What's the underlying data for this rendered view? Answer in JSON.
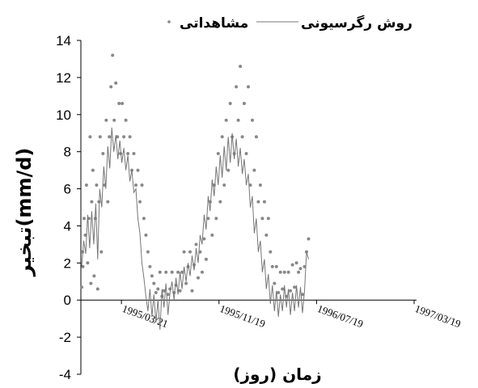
{
  "chart_data": {
    "type": "scatter",
    "title": "",
    "xlabel": "زمان (روز)",
    "ylabel": "تبخیر(mm/d)",
    "ylim": [
      -4,
      14
    ],
    "y_ticks": [
      -4,
      -2,
      0,
      2,
      4,
      6,
      8,
      10,
      12,
      14
    ],
    "x_start": "1994-12-10",
    "x_end": "1997-03-25",
    "x_ticks": [
      "1995-03-21",
      "1995-11-19",
      "1996-07-19",
      "1997-03-19"
    ],
    "x_tick_labels": [
      "1995/03/21",
      "1995/11/19",
      "1996/07/19",
      "1997/03/19"
    ],
    "grid": false,
    "legend": {
      "placement": "top",
      "entries": [
        "مشاهداتی",
        "روش رگرسیونی"
      ]
    },
    "series": [
      {
        "name": "مشاهداتی",
        "style": "markers",
        "color": "#888888",
        "points": [
          [
            "1994-12-12",
            0.7
          ],
          [
            "1994-12-14",
            2.6
          ],
          [
            "1994-12-15",
            1.8
          ],
          [
            "1994-12-18",
            4.4
          ],
          [
            "1994-12-21",
            3.5
          ],
          [
            "1994-12-24",
            6.2
          ],
          [
            "1994-12-27",
            2.0
          ],
          [
            "1994-12-30",
            4.4
          ],
          [
            "1995-01-02",
            8.8
          ],
          [
            "1995-01-04",
            0.9
          ],
          [
            "1995-01-06",
            5.3
          ],
          [
            "1995-01-09",
            7.0
          ],
          [
            "1995-01-12",
            1.3
          ],
          [
            "1995-01-15",
            4.4
          ],
          [
            "1995-01-18",
            6.2
          ],
          [
            "1995-01-21",
            0.6
          ],
          [
            "1995-01-24",
            5.3
          ],
          [
            "1995-01-27",
            8.8
          ],
          [
            "1995-01-30",
            2.6
          ],
          [
            "1995-02-03",
            7.9
          ],
          [
            "1995-02-07",
            6.2
          ],
          [
            "1995-02-11",
            9.7
          ],
          [
            "1995-02-15",
            5.3
          ],
          [
            "1995-02-19",
            8.8
          ],
          [
            "1995-02-23",
            11.5
          ],
          [
            "1995-02-27",
            13.2
          ],
          [
            "1995-03-03",
            9.7
          ],
          [
            "1995-03-07",
            11.7
          ],
          [
            "1995-03-11",
            8.8
          ],
          [
            "1995-03-15",
            10.6
          ],
          [
            "1995-03-19",
            7.9
          ],
          [
            "1995-03-23",
            10.6
          ],
          [
            "1995-03-27",
            8.8
          ],
          [
            "1995-04-01",
            9.7
          ],
          [
            "1995-04-06",
            7.9
          ],
          [
            "1995-04-11",
            8.8
          ],
          [
            "1995-04-16",
            7.0
          ],
          [
            "1995-04-21",
            7.9
          ],
          [
            "1995-04-26",
            6.2
          ],
          [
            "1995-05-01",
            7.0
          ],
          [
            "1995-05-06",
            5.3
          ],
          [
            "1995-05-11",
            6.2
          ],
          [
            "1995-05-16",
            4.4
          ],
          [
            "1995-05-21",
            3.5
          ],
          [
            "1995-05-26",
            2.6
          ],
          [
            "1995-05-31",
            1.8
          ],
          [
            "1995-06-05",
            1.3
          ],
          [
            "1995-06-10",
            0.9
          ],
          [
            "1995-06-15",
            0.4
          ],
          [
            "1995-06-20",
            0.6
          ],
          [
            "1995-06-25",
            1.5
          ],
          [
            "1995-06-30",
            0.2
          ],
          [
            "1995-07-05",
            0.5
          ],
          [
            "1995-07-10",
            1.5
          ],
          [
            "1995-07-15",
            0.3
          ],
          [
            "1995-07-20",
            0.6
          ],
          [
            "1995-07-25",
            1.5
          ],
          [
            "1995-07-30",
            0.4
          ],
          [
            "1995-08-04",
            0.8
          ],
          [
            "1995-08-09",
            1.5
          ],
          [
            "1995-08-14",
            0.5
          ],
          [
            "1995-08-19",
            1.5
          ],
          [
            "1995-08-24",
            2.6
          ],
          [
            "1995-08-29",
            0.9
          ],
          [
            "1995-09-03",
            1.8
          ],
          [
            "1995-09-08",
            2.6
          ],
          [
            "1995-09-13",
            0.5
          ],
          [
            "1995-09-18",
            1.9
          ],
          [
            "1995-09-23",
            3.0
          ],
          [
            "1995-09-28",
            1.2
          ],
          [
            "1995-10-03",
            2.6
          ],
          [
            "1995-10-08",
            1.5
          ],
          [
            "1995-10-13",
            3.3
          ],
          [
            "1995-10-18",
            2.2
          ],
          [
            "1995-10-23",
            4.4
          ],
          [
            "1995-10-28",
            5.3
          ],
          [
            "1995-11-02",
            3.5
          ],
          [
            "1995-11-07",
            6.2
          ],
          [
            "1995-11-12",
            4.4
          ],
          [
            "1995-11-17",
            7.9
          ],
          [
            "1995-11-22",
            5.3
          ],
          [
            "1995-11-27",
            8.8
          ],
          [
            "1995-12-02",
            6.2
          ],
          [
            "1995-12-07",
            9.7
          ],
          [
            "1995-12-12",
            7.0
          ],
          [
            "1995-12-17",
            10.6
          ],
          [
            "1995-12-22",
            8.8
          ],
          [
            "1995-12-27",
            7.9
          ],
          [
            "1996-01-01",
            11.5
          ],
          [
            "1996-01-06",
            9.7
          ],
          [
            "1996-01-11",
            12.6
          ],
          [
            "1996-01-16",
            8.8
          ],
          [
            "1996-01-21",
            10.6
          ],
          [
            "1996-01-26",
            7.9
          ],
          [
            "1996-01-31",
            11.5
          ],
          [
            "1996-02-05",
            6.2
          ],
          [
            "1996-02-10",
            9.7
          ],
          [
            "1996-02-15",
            7.0
          ],
          [
            "1996-02-20",
            8.8
          ],
          [
            "1996-02-25",
            5.3
          ],
          [
            "1996-03-01",
            6.2
          ],
          [
            "1996-03-06",
            4.4
          ],
          [
            "1996-03-11",
            5.3
          ],
          [
            "1996-03-16",
            3.5
          ],
          [
            "1996-03-21",
            4.4
          ],
          [
            "1996-03-26",
            2.6
          ],
          [
            "1996-03-31",
            1.8
          ],
          [
            "1996-04-05",
            0.9
          ],
          [
            "1996-04-10",
            1.8
          ],
          [
            "1996-04-15",
            0.4
          ],
          [
            "1996-04-20",
            1.5
          ],
          [
            "1996-04-25",
            0.6
          ],
          [
            "1996-04-30",
            1.5
          ],
          [
            "1996-05-05",
            0.2
          ],
          [
            "1996-05-10",
            1.5
          ],
          [
            "1996-05-15",
            0.5
          ],
          [
            "1996-05-20",
            1.9
          ],
          [
            "1996-05-25",
            0.7
          ],
          [
            "1996-05-30",
            2.0
          ],
          [
            "1996-06-04",
            1.5
          ],
          [
            "1996-06-09",
            1.7
          ],
          [
            "1996-06-14",
            0.3
          ],
          [
            "1996-06-19",
            1.8
          ],
          [
            "1996-06-24",
            2.6
          ],
          [
            "1996-06-29",
            3.3
          ]
        ]
      },
      {
        "name": "روش رگرسیونی",
        "style": "line",
        "color": "#777777",
        "points": [
          [
            "1994-12-12",
            1.8
          ],
          [
            "1994-12-17",
            3.2
          ],
          [
            "1994-12-22",
            2.5
          ],
          [
            "1994-12-27",
            4.6
          ],
          [
            "1995-01-01",
            2.8
          ],
          [
            "1995-01-06",
            4.8
          ],
          [
            "1995-01-11",
            3.0
          ],
          [
            "1995-01-16",
            5.2
          ],
          [
            "1995-01-21",
            2.2
          ],
          [
            "1995-01-26",
            6.0
          ],
          [
            "1995-01-31",
            5.0
          ],
          [
            "1995-02-05",
            7.2
          ],
          [
            "1995-02-10",
            6.0
          ],
          [
            "1995-02-15",
            8.3
          ],
          [
            "1995-02-20",
            7.1
          ],
          [
            "1995-02-25",
            9.3
          ],
          [
            "1995-03-02",
            8.0
          ],
          [
            "1995-03-07",
            8.9
          ],
          [
            "1995-03-12",
            7.6
          ],
          [
            "1995-03-17",
            8.6
          ],
          [
            "1995-03-22",
            7.4
          ],
          [
            "1995-03-27",
            8.2
          ],
          [
            "1995-04-01",
            7.0
          ],
          [
            "1995-04-06",
            7.8
          ],
          [
            "1995-04-11",
            6.4
          ],
          [
            "1995-04-16",
            7.0
          ],
          [
            "1995-04-21",
            5.8
          ],
          [
            "1995-04-26",
            6.0
          ],
          [
            "1995-05-01",
            4.4
          ],
          [
            "1995-05-06",
            3.6
          ],
          [
            "1995-05-11",
            2.0
          ],
          [
            "1995-05-16",
            1.2
          ],
          [
            "1995-05-21",
            0.2
          ],
          [
            "1995-05-26",
            -0.6
          ],
          [
            "1995-05-31",
            0.6
          ],
          [
            "1995-06-05",
            -0.9
          ],
          [
            "1995-06-10",
            0.3
          ],
          [
            "1995-06-15",
            -1.2
          ],
          [
            "1995-06-20",
            0.0
          ],
          [
            "1995-06-25",
            -1.6
          ],
          [
            "1995-06-30",
            0.6
          ],
          [
            "1995-07-05",
            -0.4
          ],
          [
            "1995-07-10",
            0.9
          ],
          [
            "1995-07-15",
            -0.8
          ],
          [
            "1995-07-20",
            0.4
          ],
          [
            "1995-07-25",
            1.0
          ],
          [
            "1995-07-30",
            0.0
          ],
          [
            "1995-08-04",
            1.2
          ],
          [
            "1995-08-09",
            0.3
          ],
          [
            "1995-08-14",
            1.5
          ],
          [
            "1995-08-19",
            0.6
          ],
          [
            "1995-08-24",
            1.8
          ],
          [
            "1995-08-29",
            1.0
          ],
          [
            "1995-09-03",
            2.0
          ],
          [
            "1995-09-08",
            1.3
          ],
          [
            "1995-09-13",
            2.4
          ],
          [
            "1995-09-18",
            1.6
          ],
          [
            "1995-09-23",
            2.8
          ],
          [
            "1995-09-28",
            2.0
          ],
          [
            "1995-10-03",
            3.5
          ],
          [
            "1995-10-08",
            3.0
          ],
          [
            "1995-10-13",
            4.6
          ],
          [
            "1995-10-18",
            3.8
          ],
          [
            "1995-10-23",
            5.6
          ],
          [
            "1995-10-28",
            4.8
          ],
          [
            "1995-11-02",
            6.5
          ],
          [
            "1995-11-07",
            5.6
          ],
          [
            "1995-11-12",
            7.2
          ],
          [
            "1995-11-17",
            6.2
          ],
          [
            "1995-11-22",
            7.8
          ],
          [
            "1995-11-27",
            6.6
          ],
          [
            "1995-12-02",
            8.3
          ],
          [
            "1995-12-07",
            7.0
          ],
          [
            "1995-12-12",
            8.8
          ],
          [
            "1995-12-17",
            7.4
          ],
          [
            "1995-12-22",
            9.0
          ],
          [
            "1995-12-27",
            7.6
          ],
          [
            "1996-01-01",
            8.7
          ],
          [
            "1996-01-06",
            7.2
          ],
          [
            "1996-01-11",
            8.2
          ],
          [
            "1996-01-16",
            6.8
          ],
          [
            "1996-01-21",
            7.6
          ],
          [
            "1996-01-26",
            6.2
          ],
          [
            "1996-01-31",
            6.8
          ],
          [
            "1996-02-05",
            5.0
          ],
          [
            "1996-02-10",
            5.6
          ],
          [
            "1996-02-15",
            3.6
          ],
          [
            "1996-02-20",
            4.4
          ],
          [
            "1996-02-25",
            2.6
          ],
          [
            "1996-03-01",
            3.2
          ],
          [
            "1996-03-06",
            1.5
          ],
          [
            "1996-03-11",
            2.2
          ],
          [
            "1996-03-16",
            0.6
          ],
          [
            "1996-03-21",
            1.4
          ],
          [
            "1996-03-26",
            -0.2
          ],
          [
            "1996-03-31",
            0.8
          ],
          [
            "1996-04-05",
            -0.6
          ],
          [
            "1996-04-10",
            0.5
          ],
          [
            "1996-04-15",
            -0.9
          ],
          [
            "1996-04-20",
            0.3
          ],
          [
            "1996-04-25",
            -0.6
          ],
          [
            "1996-04-30",
            0.8
          ],
          [
            "1996-05-05",
            -0.4
          ],
          [
            "1996-05-10",
            0.6
          ],
          [
            "1996-05-15",
            -0.8
          ],
          [
            "1996-05-20",
            0.4
          ],
          [
            "1996-05-25",
            -0.6
          ],
          [
            "1996-05-30",
            0.8
          ],
          [
            "1996-06-04",
            -0.4
          ],
          [
            "1996-06-09",
            0.7
          ],
          [
            "1996-06-14",
            -0.7
          ],
          [
            "1996-06-19",
            0.5
          ],
          [
            "1996-06-24",
            2.6
          ],
          [
            "1996-06-29",
            2.2
          ]
        ]
      }
    ]
  }
}
